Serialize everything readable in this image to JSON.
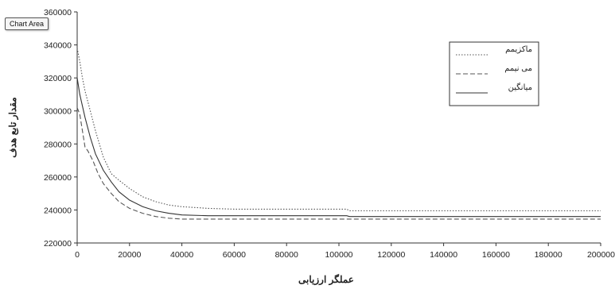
{
  "tooltip": {
    "label": "Chart Area"
  },
  "chart_data": {
    "type": "line",
    "xlabel": "عملگر ارزیابی",
    "ylabel": "مقدار تابع هدف",
    "xlim": [
      0,
      200000
    ],
    "ylim": [
      220000,
      360000
    ],
    "x_ticks": [
      "0",
      "20000",
      "40000",
      "60000",
      "80000",
      "100000",
      "120000",
      "140000",
      "160000",
      "180000",
      "200000"
    ],
    "y_ticks": [
      "220000",
      "240000",
      "260000",
      "280000",
      "300000",
      "320000",
      "340000",
      "360000"
    ],
    "grid": false,
    "legend_position": "top-right",
    "series": [
      {
        "name": "ماکزیمم",
        "color": "#555555",
        "style": "dotted",
        "x": [
          0,
          1000,
          2000,
          3000,
          5000,
          7000,
          10000,
          13000,
          16000,
          20000,
          25000,
          30000,
          35000,
          40000,
          50000,
          60000,
          80000,
          103000,
          104000,
          140000,
          200000
        ],
        "y": [
          338000,
          330000,
          320000,
          312000,
          300000,
          288000,
          272000,
          262000,
          258000,
          253000,
          248000,
          245000,
          243000,
          242000,
          241000,
          240500,
          240500,
          240500,
          239500,
          239500,
          239500
        ]
      },
      {
        "name": "می نیمم",
        "color": "#555555",
        "style": "dashed",
        "x": [
          0,
          1000,
          2000,
          3000,
          4000,
          6000,
          8000,
          10000,
          13000,
          16000,
          20000,
          25000,
          30000,
          35000,
          40000,
          50000,
          60000,
          80000,
          100000,
          140000,
          200000
        ],
        "y": [
          302000,
          298000,
          288000,
          278000,
          276000,
          270000,
          262000,
          256000,
          250000,
          245000,
          241000,
          238000,
          236000,
          235000,
          234500,
          234500,
          234500,
          234500,
          234500,
          234500,
          234500
        ]
      },
      {
        "name": "میانگین",
        "color": "#333333",
        "style": "solid",
        "x": [
          0,
          1000,
          2000,
          3000,
          5000,
          7000,
          10000,
          13000,
          16000,
          20000,
          25000,
          30000,
          35000,
          40000,
          50000,
          60000,
          80000,
          103000,
          104000,
          140000,
          200000
        ],
        "y": [
          320000,
          310000,
          303000,
          296000,
          284000,
          274000,
          264000,
          257000,
          251000,
          246000,
          242000,
          239500,
          238000,
          237000,
          236500,
          236500,
          236500,
          236500,
          236000,
          236000,
          236000
        ]
      }
    ]
  }
}
